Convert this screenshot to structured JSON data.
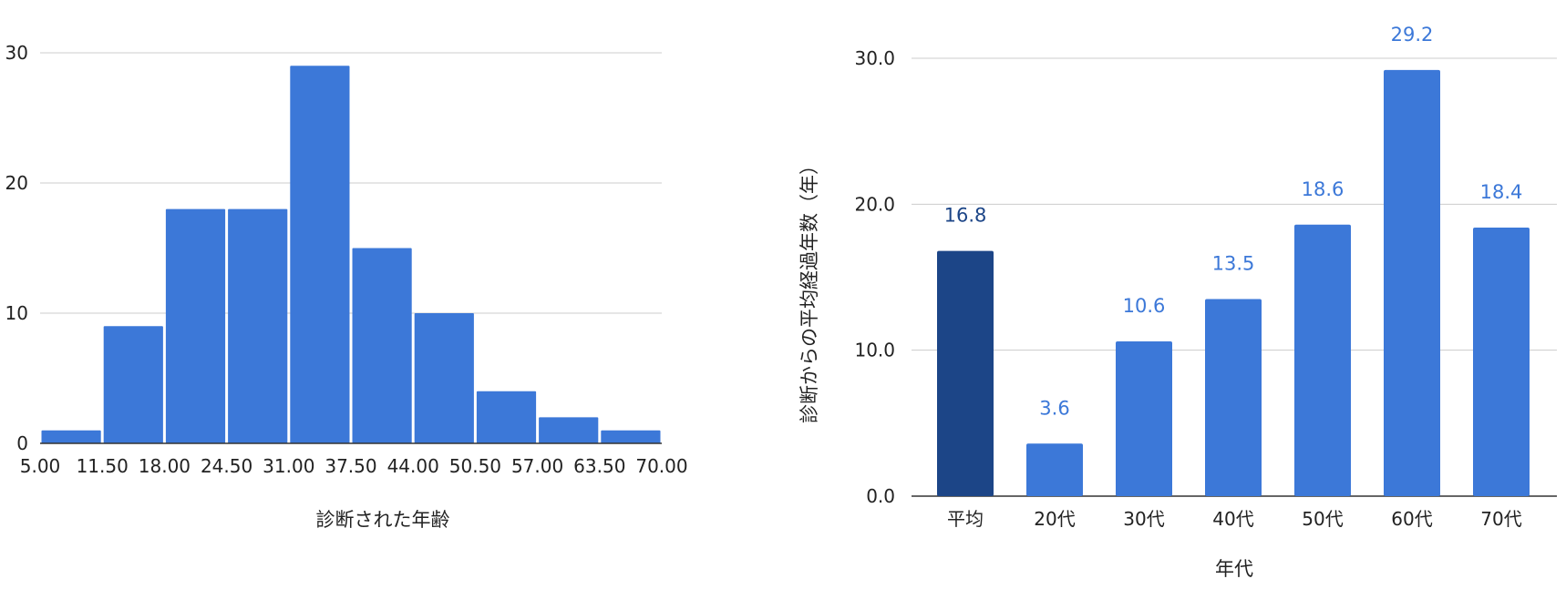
{
  "chart_data": [
    {
      "type": "bar",
      "title": "",
      "xlabel": "診断された年齢",
      "ylabel": "",
      "ylim": [
        0,
        30
      ],
      "yticks": [
        "0",
        "10",
        "20",
        "30"
      ],
      "xticks": [
        "5.00",
        "11.50",
        "18.00",
        "24.50",
        "31.00",
        "37.50",
        "44.00",
        "50.50",
        "57.00",
        "63.50",
        "70.00"
      ],
      "bins": [
        [
          5.0,
          11.5
        ],
        [
          11.5,
          18.0
        ],
        [
          18.0,
          24.5
        ],
        [
          24.5,
          31.0
        ],
        [
          31.0,
          37.5
        ],
        [
          37.5,
          44.0
        ],
        [
          44.0,
          50.5
        ],
        [
          50.5,
          57.0
        ],
        [
          57.0,
          63.5
        ],
        [
          63.5,
          70.0
        ]
      ],
      "values": [
        1,
        9,
        18,
        18,
        29,
        15,
        10,
        4,
        2,
        1
      ],
      "bar_color": "#3c78d8",
      "grid": true,
      "legend": "none"
    },
    {
      "type": "bar",
      "title": "",
      "xlabel": "年代",
      "ylabel": "診断からの平均経過年数（年）",
      "ylim": [
        0,
        30
      ],
      "yticks": [
        "0.0",
        "10.0",
        "20.0",
        "30.0"
      ],
      "categories": [
        "平均",
        "20代",
        "30代",
        "40代",
        "50代",
        "60代",
        "70代"
      ],
      "values": [
        16.8,
        3.6,
        10.6,
        13.5,
        18.6,
        29.2,
        18.4
      ],
      "labels": [
        "16.8",
        "3.6",
        "10.6",
        "13.5",
        "18.6",
        "29.2",
        "18.4"
      ],
      "bar_colors": [
        "#1c4587",
        "#3c78d8",
        "#3c78d8",
        "#3c78d8",
        "#3c78d8",
        "#3c78d8",
        "#3c78d8"
      ],
      "label_colors": [
        "#1c4587",
        "#3c78d8",
        "#3c78d8",
        "#3c78d8",
        "#3c78d8",
        "#3c78d8",
        "#3c78d8"
      ],
      "grid": true,
      "legend": "none"
    }
  ],
  "colors": {
    "grid": "#cccccc",
    "axis": "#333333",
    "text": "#222222"
  }
}
